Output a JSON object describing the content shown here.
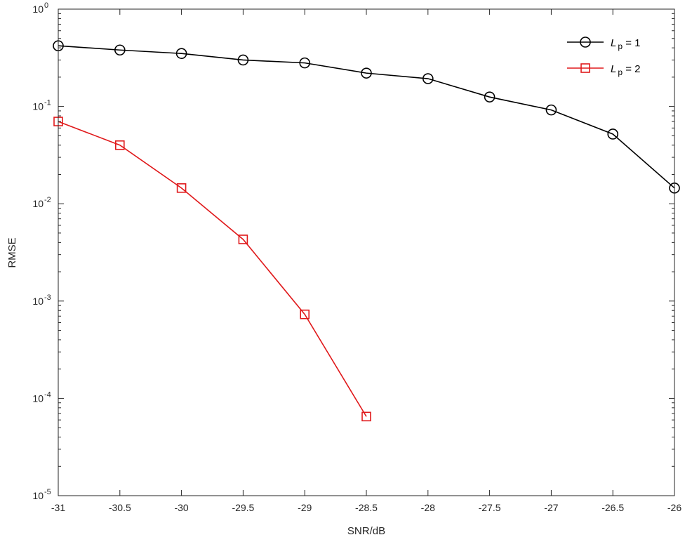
{
  "chart_data": {
    "type": "line",
    "xlabel": "SNR/dB",
    "ylabel": "RMSE",
    "xlim": [
      -31,
      -26
    ],
    "ylim": [
      1e-05,
      1
    ],
    "yscale": "log",
    "grid": false,
    "legend_position": "top-right",
    "x_ticks": [
      {
        "value": -31,
        "label": "-31"
      },
      {
        "value": -30.5,
        "label": "-30.5"
      },
      {
        "value": -30,
        "label": "-30"
      },
      {
        "value": -29.5,
        "label": "-29.5"
      },
      {
        "value": -29,
        "label": "-29"
      },
      {
        "value": -28.5,
        "label": "-28.5"
      },
      {
        "value": -28,
        "label": "-28"
      },
      {
        "value": -27.5,
        "label": "-27.5"
      },
      {
        "value": -27,
        "label": "-27"
      },
      {
        "value": -26.5,
        "label": "-26.5"
      },
      {
        "value": -26,
        "label": "-26"
      }
    ],
    "y_ticks": [
      {
        "value": 1,
        "base": "10",
        "exp": "0"
      },
      {
        "value": 0.1,
        "base": "10",
        "exp": "-1"
      },
      {
        "value": 0.01,
        "base": "10",
        "exp": "-2"
      },
      {
        "value": 0.001,
        "base": "10",
        "exp": "-3"
      },
      {
        "value": 0.0001,
        "base": "10",
        "exp": "-4"
      },
      {
        "value": 1e-05,
        "base": "10",
        "exp": "-5"
      }
    ],
    "series": [
      {
        "name_main": "L",
        "name_sub": "p",
        "name_rest": " = 1",
        "color": "#000000",
        "marker": "circle",
        "x": [
          -31,
          -30.5,
          -30,
          -29.5,
          -29,
          -28.5,
          -28,
          -27.5,
          -27,
          -26.5,
          -26
        ],
        "y": [
          0.42,
          0.38,
          0.35,
          0.3,
          0.28,
          0.22,
          0.193,
          0.125,
          0.092,
          0.052,
          0.0145
        ]
      },
      {
        "name_main": "L",
        "name_sub": "p",
        "name_rest": " = 2",
        "color": "#e0191b",
        "marker": "square",
        "x": [
          -31,
          -30.5,
          -30,
          -29.5,
          -29,
          -28.5
        ],
        "y": [
          0.07,
          0.04,
          0.0145,
          0.0043,
          0.00073,
          6.5e-05
        ]
      }
    ]
  }
}
